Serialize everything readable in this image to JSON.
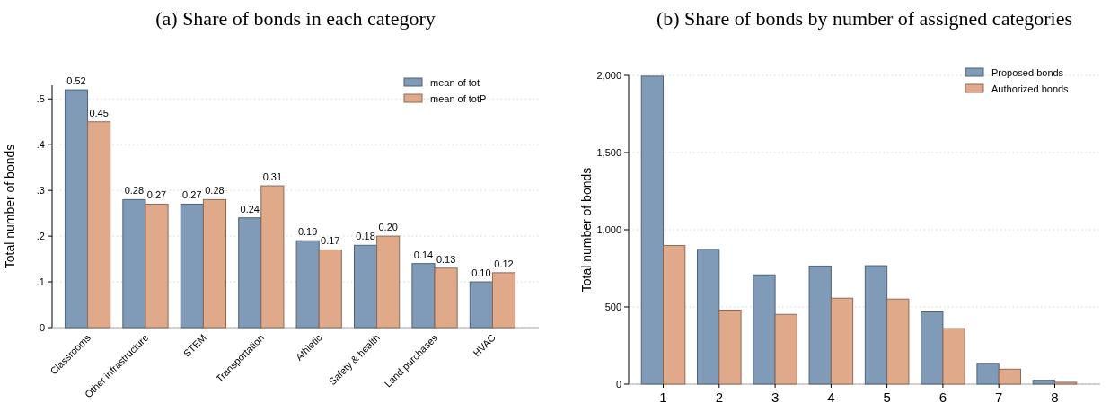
{
  "chart_data": [
    {
      "type": "bar",
      "title": "(a) Share of bonds in each category",
      "ylabel": "Total number of bonds",
      "categories": [
        "Classrooms",
        "Other infrastructure",
        "STEM",
        "Transportation",
        "Athletic",
        "Safety & health",
        "Land purchases",
        "HVAC"
      ],
      "series": [
        {
          "name": "mean of tot",
          "color": "#7f9bb8",
          "values": [
            0.52,
            0.28,
            0.27,
            0.24,
            0.19,
            0.18,
            0.14,
            0.1
          ],
          "value_labels": [
            "0.52",
            "0.28",
            "0.27",
            "0.24",
            "0.19",
            "0.18",
            "0.14",
            "0.10"
          ]
        },
        {
          "name": "mean of totP",
          "color": "#dfa98a",
          "values": [
            0.45,
            0.27,
            0.28,
            0.31,
            0.17,
            0.2,
            0.13,
            0.12
          ],
          "value_labels": [
            "0.45",
            "0.27",
            "0.28",
            "0.31",
            "0.17",
            "0.20",
            "0.13",
            "0.12"
          ]
        }
      ],
      "ylim": [
        0,
        0.53
      ],
      "yticks": [
        {
          "value": 0,
          "label": "0"
        },
        {
          "value": 0.1,
          "label": ".1"
        },
        {
          "value": 0.2,
          "label": ".2"
        },
        {
          "value": 0.3,
          "label": ".3"
        },
        {
          "value": 0.4,
          "label": ".4"
        },
        {
          "value": 0.5,
          "label": ".5"
        }
      ],
      "grid": "y",
      "legend": "top right"
    },
    {
      "type": "bar",
      "title": "(b) Share of bonds by number of assigned categories",
      "ylabel": "Total number of bonds",
      "categories": [
        "1",
        "2",
        "3",
        "4",
        "5",
        "6",
        "7",
        "8"
      ],
      "series": [
        {
          "name": "Proposed bonds",
          "color": "#7f9bb8",
          "values": [
            1995,
            873,
            708,
            765,
            767,
            468,
            135,
            25
          ]
        },
        {
          "name": "Authorized bonds",
          "color": "#dfa98a",
          "values": [
            898,
            480,
            452,
            557,
            551,
            360,
            97,
            12
          ]
        }
      ],
      "ylim": [
        0,
        2000
      ],
      "yticks": [
        {
          "value": 0,
          "label": "0"
        },
        {
          "value": 500,
          "label": "500"
        },
        {
          "value": 1000,
          "label": "1,000"
        },
        {
          "value": 1500,
          "label": "1,500"
        },
        {
          "value": 2000,
          "label": "2,000"
        }
      ],
      "grid": "y",
      "legend": "top right"
    }
  ]
}
